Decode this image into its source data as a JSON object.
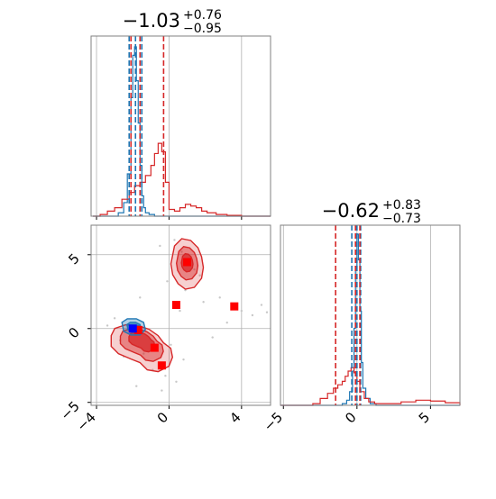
{
  "chart_data": [
    {
      "panel": "marginal-x",
      "type": "histogram",
      "title": {
        "value": "−1.03",
        "upper": "+0.76",
        "lower": "−0.95"
      },
      "xlim": [
        -4.3,
        5.6
      ],
      "grid": true,
      "tick_labels": [
        "−4",
        "0",
        "4"
      ],
      "series": [
        {
          "color": "#1f77b4",
          "x": [
            -4.2,
            -3.6,
            -3.1,
            -2.8,
            -2.5,
            -2.3,
            -2.1,
            -2.0,
            -1.9,
            -1.8,
            -1.7,
            -1.6,
            -1.5,
            -1.4,
            -1.3,
            -1.1,
            -0.8,
            -0.4,
            0,
            1,
            3,
            5.6
          ],
          "y": [
            0,
            0,
            0,
            0.02,
            0.08,
            0.25,
            0.7,
            0.95,
            1.0,
            0.8,
            0.55,
            0.3,
            0.12,
            0.05,
            0.02,
            0.01,
            0,
            0,
            0,
            0,
            0,
            0
          ]
        },
        {
          "color": "#d62728",
          "x": [
            -4.2,
            -3.8,
            -3.4,
            -3.0,
            -2.6,
            -2.2,
            -1.9,
            -1.6,
            -1.3,
            -1.0,
            -0.8,
            -0.6,
            -0.4,
            -0.2,
            0,
            0.3,
            0.6,
            0.9,
            1.2,
            1.5,
            1.8,
            2.1,
            2.6,
            3.2,
            4,
            5.6
          ],
          "y": [
            0,
            0.01,
            0.03,
            0.05,
            0.1,
            0.14,
            0.18,
            0.2,
            0.24,
            0.3,
            0.37,
            0.43,
            0.38,
            0.2,
            0.04,
            0.03,
            0.05,
            0.07,
            0.06,
            0.05,
            0.03,
            0.02,
            0.01,
            0.005,
            0,
            0
          ]
        }
      ],
      "quantile_lines": [
        {
          "x": -2.2,
          "color": "#1f77b4"
        },
        {
          "x": -1.85,
          "color": "#1f77b4"
        },
        {
          "x": -1.5,
          "color": "#1f77b4"
        },
        {
          "x": -2.1,
          "color": "#d62728"
        },
        {
          "x": -1.6,
          "color": "#d62728"
        },
        {
          "x": -0.3,
          "color": "#d62728"
        }
      ]
    },
    {
      "panel": "joint",
      "type": "scatter",
      "xlim": [
        -4.3,
        5.6
      ],
      "ylim": [
        -5.2,
        7.0
      ],
      "grid": true,
      "x_tick_labels": [
        "−4",
        "0",
        "4"
      ],
      "y_tick_labels": [
        "−5",
        "0",
        "5"
      ],
      "background_points": [
        [
          -0.5,
          5.6
        ],
        [
          0.7,
          5.2
        ],
        [
          1.4,
          4.0
        ],
        [
          -0.1,
          3.2
        ],
        [
          0.9,
          2.6
        ],
        [
          1.7,
          3.6
        ],
        [
          -3.0,
          0.7
        ],
        [
          -2.7,
          -0.8
        ],
        [
          -1.4,
          -1.7
        ],
        [
          -0.9,
          -2.8
        ],
        [
          -0.2,
          -3.2
        ],
        [
          0.4,
          -3.6
        ],
        [
          -1.8,
          -3.9
        ],
        [
          0.8,
          -2.1
        ],
        [
          2.4,
          -0.6
        ],
        [
          3.2,
          0.4
        ],
        [
          4.0,
          1.2
        ],
        [
          4.6,
          0.9
        ],
        [
          5.1,
          1.6
        ],
        [
          5.4,
          1.1
        ],
        [
          -3.4,
          0.2
        ],
        [
          -2.5,
          -1.9
        ],
        [
          -0.4,
          -4.2
        ],
        [
          0.1,
          -1.1
        ],
        [
          0.6,
          1.2
        ],
        [
          1.9,
          1.8
        ],
        [
          2.8,
          2.1
        ],
        [
          -1.6,
          2.1
        ],
        [
          0.3,
          6.0
        ]
      ],
      "contours": [
        {
          "color": "#d62728",
          "label": "lower-left mode",
          "center": [
            -1.5,
            -0.6
          ],
          "levels": [
            1.0,
            0.7,
            0.42
          ]
        },
        {
          "color": "#d62728",
          "label": "upper mode",
          "center": [
            1.0,
            4.5
          ],
          "levels": [
            1.0,
            0.66,
            0.36
          ]
        },
        {
          "color": "#1f77b4",
          "label": "blue mode",
          "center": [
            -1.9,
            0.05
          ],
          "levels": [
            1.0,
            0.6
          ]
        }
      ],
      "red_markers": [
        [
          1.0,
          4.5
        ],
        [
          0.4,
          1.6
        ],
        [
          3.6,
          1.5
        ],
        [
          -0.8,
          -1.3
        ],
        [
          -0.4,
          -2.5
        ],
        [
          -1.7,
          -0.1
        ]
      ],
      "blue_markers": [
        [
          -2.0,
          0.0
        ]
      ]
    },
    {
      "panel": "marginal-y",
      "type": "histogram",
      "title": {
        "value": "−0.62",
        "upper": "+0.83",
        "lower": "−0.73"
      },
      "xlim": [
        -5.2,
        7.0
      ],
      "grid": true,
      "tick_labels": [
        "−5",
        "0",
        "5"
      ],
      "series": [
        {
          "color": "#1f77b4",
          "x": [
            -5.2,
            -1.5,
            -1.0,
            -0.7,
            -0.5,
            -0.3,
            -0.2,
            -0.1,
            0,
            0.1,
            0.2,
            0.3,
            0.4,
            0.6,
            0.9,
            1.3,
            7.0
          ],
          "y": [
            0,
            0,
            0.01,
            0.03,
            0.08,
            0.2,
            0.45,
            0.8,
            1.0,
            0.85,
            0.55,
            0.25,
            0.1,
            0.04,
            0.01,
            0,
            0
          ]
        },
        {
          "color": "#d62728",
          "x": [
            -5.2,
            -3.5,
            -3.0,
            -2.5,
            -2.0,
            -1.6,
            -1.3,
            -1.0,
            -0.8,
            -0.6,
            -0.4,
            -0.2,
            0,
            0.2,
            0.5,
            0.8,
            1.2,
            2,
            3,
            4,
            5,
            6,
            7.0
          ],
          "y": [
            0,
            0,
            0.01,
            0.04,
            0.07,
            0.1,
            0.12,
            0.14,
            0.17,
            0.2,
            0.22,
            0.19,
            0.14,
            0.08,
            0.04,
            0.02,
            0.01,
            0.01,
            0.02,
            0.03,
            0.025,
            0.015,
            0
          ]
        }
      ],
      "quantile_lines": [
        {
          "x": -0.35,
          "color": "#1f77b4"
        },
        {
          "x": 0.0,
          "color": "#1f77b4"
        },
        {
          "x": 0.25,
          "color": "#1f77b4"
        },
        {
          "x": -1.45,
          "color": "#d62728"
        },
        {
          "x": -0.1,
          "color": "#d62728"
        },
        {
          "x": 0.2,
          "color": "#d62728"
        }
      ]
    }
  ],
  "colors": {
    "blue": "#1f77b4",
    "red": "#d62728",
    "red_marker": "#ff0000",
    "blue_marker": "#0000ff",
    "grid": "#b0b0b0",
    "axes": "#808080"
  }
}
